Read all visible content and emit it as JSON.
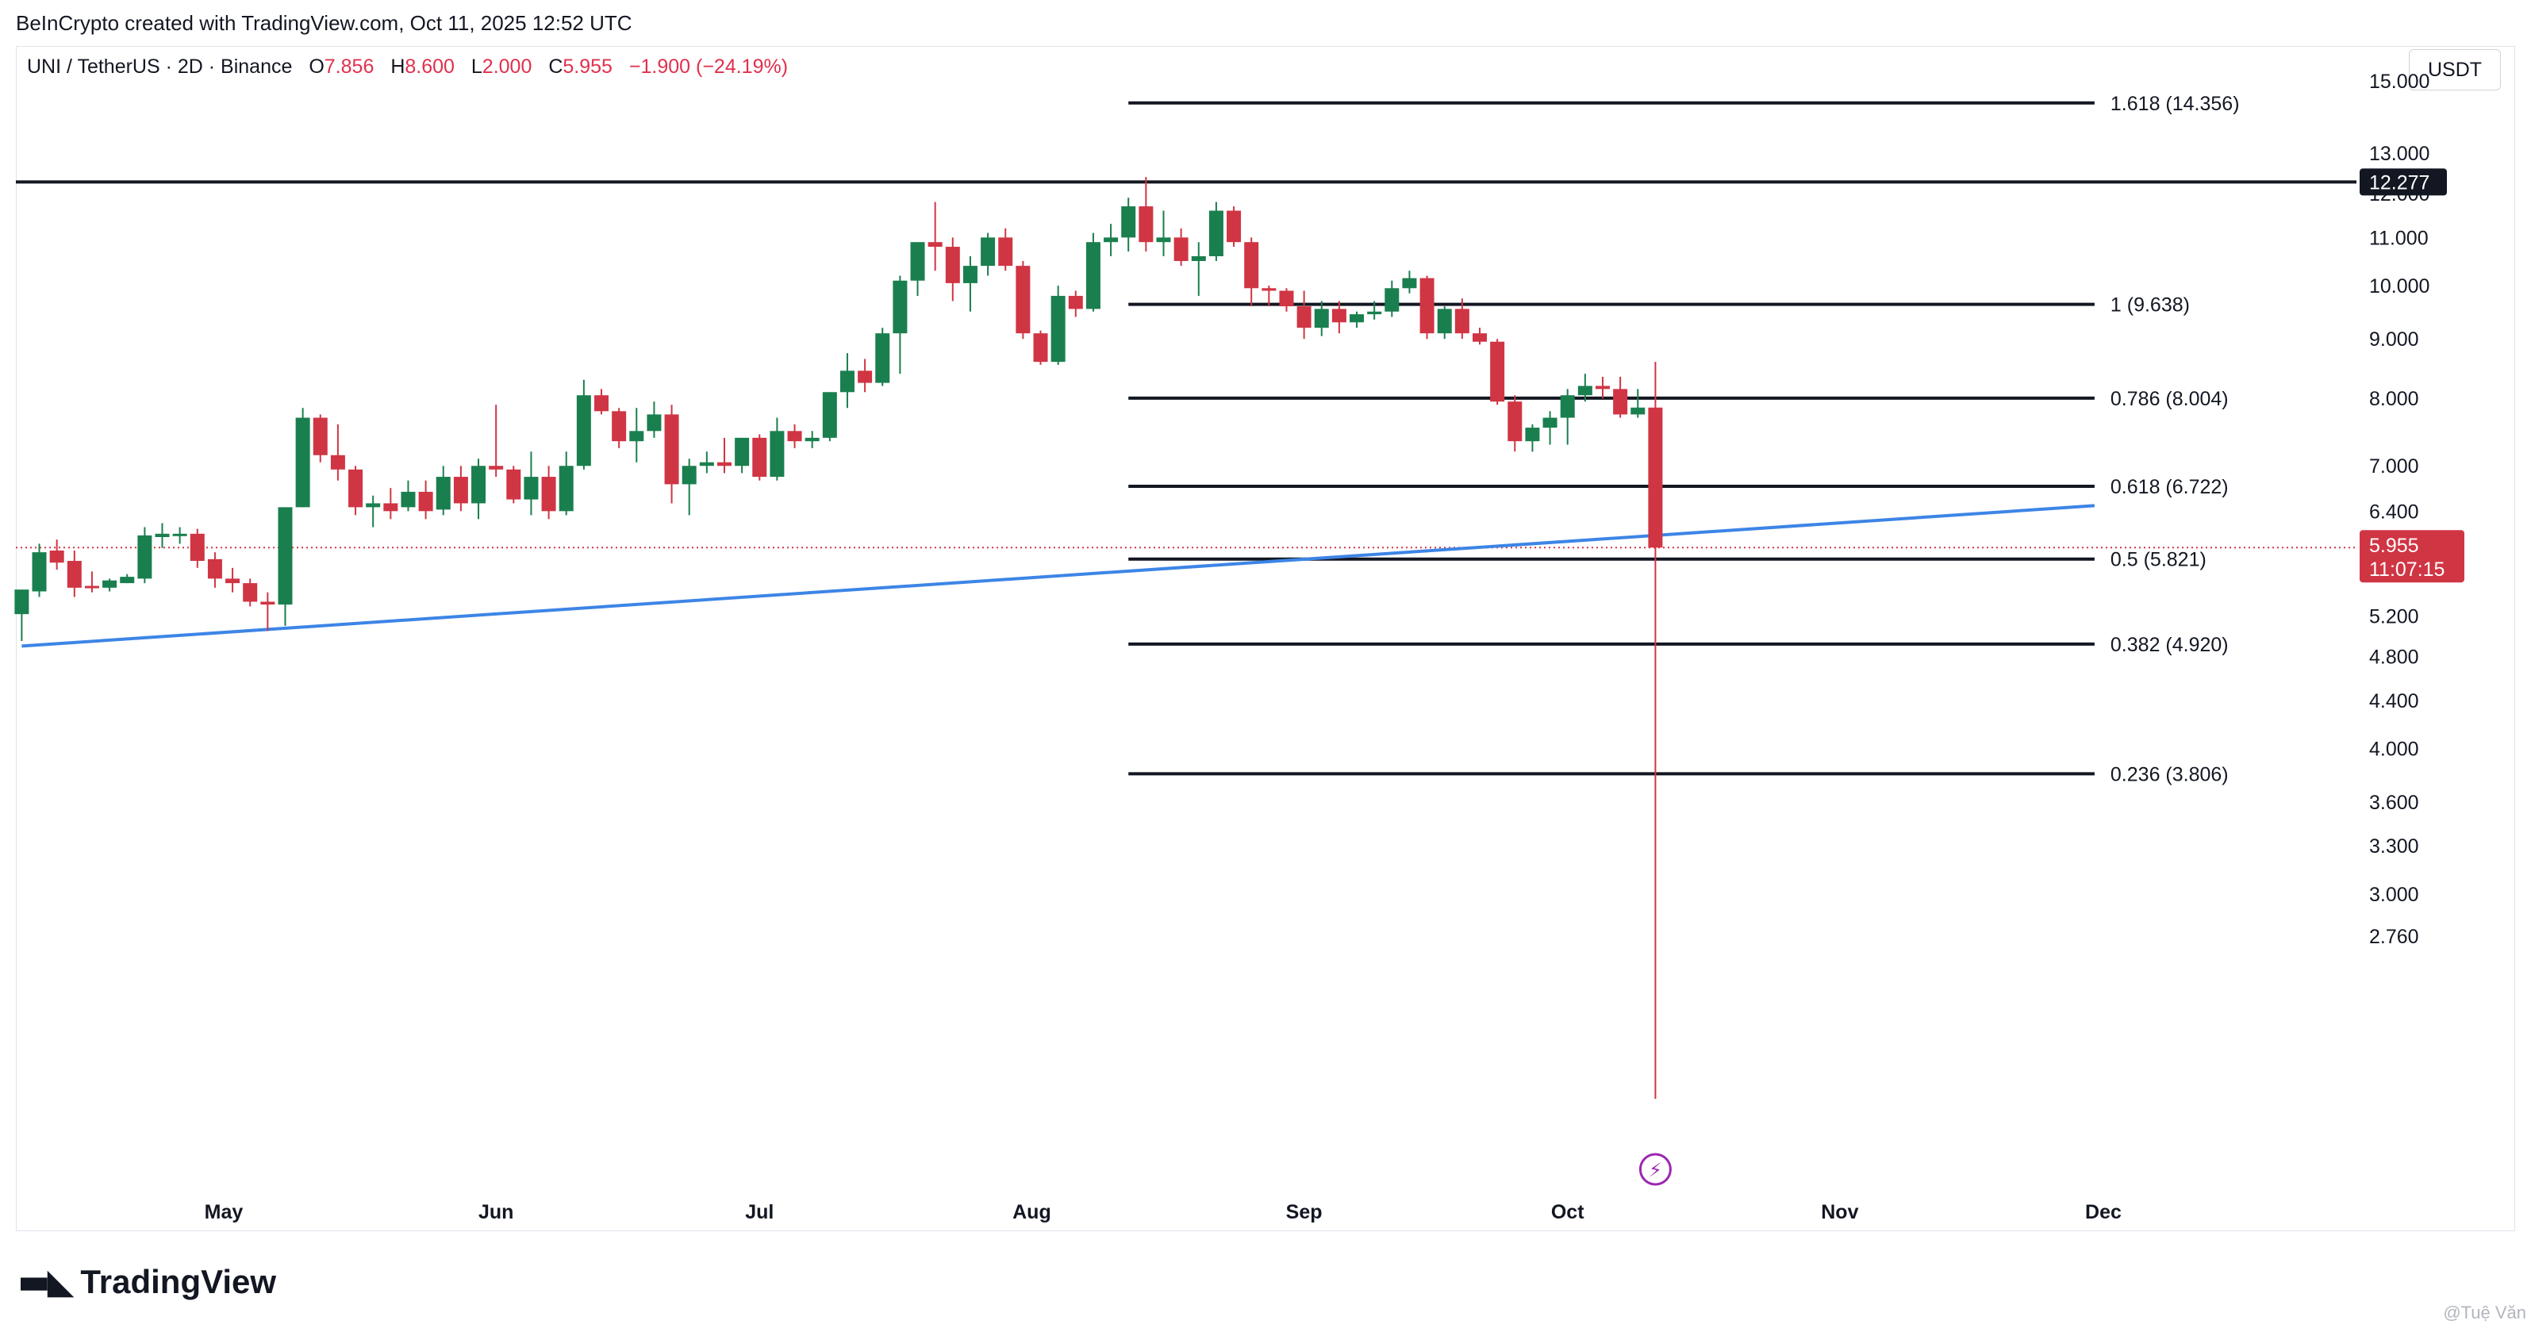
{
  "header": {
    "credit": "BeInCrypto created with TradingView.com, Oct 11, 2025 12:52 UTC"
  },
  "legend": {
    "symbol": "UNI / TetherUS · 2D · Binance",
    "open_label": "O",
    "open": "7.856",
    "high_label": "H",
    "high": "8.600",
    "low_label": "L",
    "low": "2.000",
    "close_label": "C",
    "close": "5.955",
    "change": "−1.900 (−24.19%)"
  },
  "unit": "USDT",
  "logo": {
    "text": "TradingView"
  },
  "watermark": "@Tuệ Văn",
  "colors": {
    "up": "#1a7f4e",
    "down": "#d03544",
    "trendline": "#3d85e6",
    "fib": "#131722",
    "price_badge": "#d03544",
    "resistance_badge": "#131722"
  },
  "chart_data": {
    "type": "candlestick",
    "scale": "log",
    "timeframe": "2D",
    "y_ticks": [
      "15.000",
      "13.000",
      "12.000",
      "11.000",
      "10.000",
      "9.000",
      "8.000",
      "7.000",
      "6.400",
      "5.200",
      "4.800",
      "4.400",
      "4.000",
      "3.600",
      "3.300",
      "3.000",
      "2.760"
    ],
    "x_ticks": [
      {
        "label": "May",
        "date": "2025-05-01"
      },
      {
        "label": "Jun",
        "date": "2025-06-01"
      },
      {
        "label": "Jul",
        "date": "2025-07-01"
      },
      {
        "label": "Aug",
        "date": "2025-08-01"
      },
      {
        "label": "Sep",
        "date": "2025-09-01"
      },
      {
        "label": "Oct",
        "date": "2025-10-01"
      },
      {
        "label": "Nov",
        "date": "2025-11-01"
      },
      {
        "label": "Dec",
        "date": "2025-12-01"
      }
    ],
    "candles": [
      {
        "date": "2025-04-08",
        "o": 5.22,
        "h": 5.45,
        "l": 4.95,
        "c": 5.48
      },
      {
        "date": "2025-04-10",
        "o": 5.46,
        "h": 6.0,
        "l": 5.4,
        "c": 5.9
      },
      {
        "date": "2025-04-12",
        "o": 5.92,
        "h": 6.05,
        "l": 5.7,
        "c": 5.78
      },
      {
        "date": "2025-04-14",
        "o": 5.8,
        "h": 5.92,
        "l": 5.4,
        "c": 5.5
      },
      {
        "date": "2025-04-16",
        "o": 5.52,
        "h": 5.68,
        "l": 5.45,
        "c": 5.5
      },
      {
        "date": "2025-04-18",
        "o": 5.5,
        "h": 5.6,
        "l": 5.46,
        "c": 5.58
      },
      {
        "date": "2025-04-20",
        "o": 5.55,
        "h": 5.65,
        "l": 5.55,
        "c": 5.62
      },
      {
        "date": "2025-04-22",
        "o": 5.6,
        "h": 6.2,
        "l": 5.55,
        "c": 6.1
      },
      {
        "date": "2025-04-24",
        "o": 6.08,
        "h": 6.25,
        "l": 5.95,
        "c": 6.12
      },
      {
        "date": "2025-04-26",
        "o": 6.1,
        "h": 6.2,
        "l": 6.0,
        "c": 6.12
      },
      {
        "date": "2025-04-28",
        "o": 6.12,
        "h": 6.18,
        "l": 5.72,
        "c": 5.8
      },
      {
        "date": "2025-04-30",
        "o": 5.82,
        "h": 5.9,
        "l": 5.5,
        "c": 5.6
      },
      {
        "date": "2025-05-02",
        "o": 5.6,
        "h": 5.72,
        "l": 5.45,
        "c": 5.55
      },
      {
        "date": "2025-05-04",
        "o": 5.55,
        "h": 5.6,
        "l": 5.3,
        "c": 5.35
      },
      {
        "date": "2025-05-06",
        "o": 5.35,
        "h": 5.45,
        "l": 5.05,
        "c": 5.32
      },
      {
        "date": "2025-05-08",
        "o": 5.32,
        "h": 6.45,
        "l": 5.1,
        "c": 6.45
      },
      {
        "date": "2025-05-10",
        "o": 6.45,
        "h": 7.85,
        "l": 6.45,
        "c": 7.7
      },
      {
        "date": "2025-05-12",
        "o": 7.7,
        "h": 7.75,
        "l": 7.05,
        "c": 7.15
      },
      {
        "date": "2025-05-14",
        "o": 7.15,
        "h": 7.6,
        "l": 6.8,
        "c": 6.95
      },
      {
        "date": "2025-05-16",
        "o": 6.95,
        "h": 7.0,
        "l": 6.35,
        "c": 6.45
      },
      {
        "date": "2025-05-18",
        "o": 6.45,
        "h": 6.6,
        "l": 6.2,
        "c": 6.5
      },
      {
        "date": "2025-05-20",
        "o": 6.5,
        "h": 6.7,
        "l": 6.3,
        "c": 6.4
      },
      {
        "date": "2025-05-22",
        "o": 6.45,
        "h": 6.8,
        "l": 6.4,
        "c": 6.65
      },
      {
        "date": "2025-05-24",
        "o": 6.65,
        "h": 6.8,
        "l": 6.3,
        "c": 6.4
      },
      {
        "date": "2025-05-26",
        "o": 6.42,
        "h": 7.0,
        "l": 6.35,
        "c": 6.85
      },
      {
        "date": "2025-05-28",
        "o": 6.85,
        "h": 7.0,
        "l": 6.4,
        "c": 6.5
      },
      {
        "date": "2025-05-30",
        "o": 6.5,
        "h": 7.1,
        "l": 6.3,
        "c": 7.0
      },
      {
        "date": "2025-06-01",
        "o": 7.0,
        "h": 7.9,
        "l": 6.85,
        "c": 6.95
      },
      {
        "date": "2025-06-03",
        "o": 6.95,
        "h": 7.0,
        "l": 6.5,
        "c": 6.55
      },
      {
        "date": "2025-06-05",
        "o": 6.55,
        "h": 7.2,
        "l": 6.35,
        "c": 6.85
      },
      {
        "date": "2025-06-07",
        "o": 6.85,
        "h": 7.0,
        "l": 6.3,
        "c": 6.4
      },
      {
        "date": "2025-06-09",
        "o": 6.4,
        "h": 7.2,
        "l": 6.35,
        "c": 7.0
      },
      {
        "date": "2025-06-11",
        "o": 7.0,
        "h": 8.3,
        "l": 6.95,
        "c": 8.05
      },
      {
        "date": "2025-06-13",
        "o": 8.05,
        "h": 8.15,
        "l": 7.75,
        "c": 7.8
      },
      {
        "date": "2025-06-15",
        "o": 7.8,
        "h": 7.85,
        "l": 7.25,
        "c": 7.35
      },
      {
        "date": "2025-06-17",
        "o": 7.35,
        "h": 7.85,
        "l": 7.05,
        "c": 7.5
      },
      {
        "date": "2025-06-19",
        "o": 7.5,
        "h": 7.95,
        "l": 7.4,
        "c": 7.75
      },
      {
        "date": "2025-06-21",
        "o": 7.75,
        "h": 7.9,
        "l": 6.5,
        "c": 6.75
      },
      {
        "date": "2025-06-23",
        "o": 6.75,
        "h": 7.1,
        "l": 6.35,
        "c": 7.0
      },
      {
        "date": "2025-06-25",
        "o": 7.0,
        "h": 7.2,
        "l": 6.9,
        "c": 7.05
      },
      {
        "date": "2025-06-27",
        "o": 7.05,
        "h": 7.4,
        "l": 6.9,
        "c": 7.0
      },
      {
        "date": "2025-06-29",
        "o": 7.0,
        "h": 7.4,
        "l": 6.9,
        "c": 7.4
      },
      {
        "date": "2025-07-01",
        "o": 7.4,
        "h": 7.45,
        "l": 6.8,
        "c": 6.85
      },
      {
        "date": "2025-07-03",
        "o": 6.85,
        "h": 7.7,
        "l": 6.8,
        "c": 7.5
      },
      {
        "date": "2025-07-05",
        "o": 7.5,
        "h": 7.6,
        "l": 7.25,
        "c": 7.35
      },
      {
        "date": "2025-07-07",
        "o": 7.35,
        "h": 7.5,
        "l": 7.25,
        "c": 7.4
      },
      {
        "date": "2025-07-09",
        "o": 7.4,
        "h": 8.1,
        "l": 7.35,
        "c": 8.1
      },
      {
        "date": "2025-07-11",
        "o": 8.1,
        "h": 8.75,
        "l": 7.85,
        "c": 8.45
      },
      {
        "date": "2025-07-13",
        "o": 8.45,
        "h": 8.65,
        "l": 8.1,
        "c": 8.25
      },
      {
        "date": "2025-07-15",
        "o": 8.25,
        "h": 9.2,
        "l": 8.2,
        "c": 9.1
      },
      {
        "date": "2025-07-17",
        "o": 9.1,
        "h": 10.2,
        "l": 8.4,
        "c": 10.1
      },
      {
        "date": "2025-07-19",
        "o": 10.1,
        "h": 10.9,
        "l": 9.8,
        "c": 10.9
      },
      {
        "date": "2025-07-21",
        "o": 10.9,
        "h": 11.8,
        "l": 10.3,
        "c": 10.8
      },
      {
        "date": "2025-07-23",
        "o": 10.8,
        "h": 11.0,
        "l": 9.7,
        "c": 10.05
      },
      {
        "date": "2025-07-25",
        "o": 10.05,
        "h": 10.6,
        "l": 9.5,
        "c": 10.4
      },
      {
        "date": "2025-07-27",
        "o": 10.4,
        "h": 11.1,
        "l": 10.2,
        "c": 11.0
      },
      {
        "date": "2025-07-29",
        "o": 11.0,
        "h": 11.2,
        "l": 10.3,
        "c": 10.4
      },
      {
        "date": "2025-07-31",
        "o": 10.4,
        "h": 10.5,
        "l": 9.0,
        "c": 9.1
      },
      {
        "date": "2025-08-02",
        "o": 9.1,
        "h": 9.15,
        "l": 8.55,
        "c": 8.6
      },
      {
        "date": "2025-08-04",
        "o": 8.6,
        "h": 10.0,
        "l": 8.55,
        "c": 9.8
      },
      {
        "date": "2025-08-06",
        "o": 9.8,
        "h": 9.9,
        "l": 9.4,
        "c": 9.55
      },
      {
        "date": "2025-08-08",
        "o": 9.55,
        "h": 11.1,
        "l": 9.5,
        "c": 10.9
      },
      {
        "date": "2025-08-10",
        "o": 10.9,
        "h": 11.3,
        "l": 10.6,
        "c": 11.0
      },
      {
        "date": "2025-08-12",
        "o": 11.0,
        "h": 11.9,
        "l": 10.7,
        "c": 11.7
      },
      {
        "date": "2025-08-14",
        "o": 11.7,
        "h": 12.4,
        "l": 10.7,
        "c": 10.9
      },
      {
        "date": "2025-08-16",
        "o": 10.9,
        "h": 11.6,
        "l": 10.6,
        "c": 11.0
      },
      {
        "date": "2025-08-18",
        "o": 11.0,
        "h": 11.2,
        "l": 10.4,
        "c": 10.5
      },
      {
        "date": "2025-08-20",
        "o": 10.5,
        "h": 10.9,
        "l": 9.8,
        "c": 10.6
      },
      {
        "date": "2025-08-22",
        "o": 10.6,
        "h": 11.8,
        "l": 10.5,
        "c": 11.6
      },
      {
        "date": "2025-08-24",
        "o": 11.6,
        "h": 11.7,
        "l": 10.8,
        "c": 10.9
      },
      {
        "date": "2025-08-26",
        "o": 10.9,
        "h": 11.0,
        "l": 9.6,
        "c": 9.95
      },
      {
        "date": "2025-08-28",
        "o": 9.95,
        "h": 10.0,
        "l": 9.6,
        "c": 9.9
      },
      {
        "date": "2025-08-30",
        "o": 9.9,
        "h": 9.95,
        "l": 9.5,
        "c": 9.6
      },
      {
        "date": "2025-09-01",
        "o": 9.6,
        "h": 9.9,
        "l": 9.0,
        "c": 9.2
      },
      {
        "date": "2025-09-03",
        "o": 9.2,
        "h": 9.7,
        "l": 9.05,
        "c": 9.55
      },
      {
        "date": "2025-09-05",
        "o": 9.55,
        "h": 9.7,
        "l": 9.1,
        "c": 9.3
      },
      {
        "date": "2025-09-07",
        "o": 9.3,
        "h": 9.5,
        "l": 9.2,
        "c": 9.45
      },
      {
        "date": "2025-09-09",
        "o": 9.45,
        "h": 9.7,
        "l": 9.35,
        "c": 9.5
      },
      {
        "date": "2025-09-11",
        "o": 9.5,
        "h": 10.1,
        "l": 9.4,
        "c": 9.95
      },
      {
        "date": "2025-09-13",
        "o": 9.95,
        "h": 10.3,
        "l": 9.85,
        "c": 10.15
      },
      {
        "date": "2025-09-15",
        "o": 10.15,
        "h": 10.2,
        "l": 9.0,
        "c": 9.1
      },
      {
        "date": "2025-09-17",
        "o": 9.1,
        "h": 9.6,
        "l": 9.0,
        "c": 9.55
      },
      {
        "date": "2025-09-19",
        "o": 9.55,
        "h": 9.75,
        "l": 9.0,
        "c": 9.1
      },
      {
        "date": "2025-09-21",
        "o": 9.1,
        "h": 9.2,
        "l": 8.9,
        "c": 8.95
      },
      {
        "date": "2025-09-23",
        "o": 8.95,
        "h": 9.0,
        "l": 7.9,
        "c": 7.95
      },
      {
        "date": "2025-09-25",
        "o": 7.95,
        "h": 8.05,
        "l": 7.2,
        "c": 7.35
      },
      {
        "date": "2025-09-27",
        "o": 7.35,
        "h": 7.6,
        "l": 7.2,
        "c": 7.55
      },
      {
        "date": "2025-09-29",
        "o": 7.55,
        "h": 7.8,
        "l": 7.3,
        "c": 7.7
      },
      {
        "date": "2025-10-01",
        "o": 7.7,
        "h": 8.15,
        "l": 7.3,
        "c": 8.05
      },
      {
        "date": "2025-10-03",
        "o": 8.05,
        "h": 8.4,
        "l": 7.95,
        "c": 8.2
      },
      {
        "date": "2025-10-05",
        "o": 8.2,
        "h": 8.35,
        "l": 8.0,
        "c": 8.15
      },
      {
        "date": "2025-10-07",
        "o": 8.15,
        "h": 8.35,
        "l": 7.7,
        "c": 7.75
      },
      {
        "date": "2025-10-09",
        "o": 7.75,
        "h": 8.15,
        "l": 7.7,
        "c": 7.856
      },
      {
        "date": "2025-10-11",
        "o": 7.856,
        "h": 8.6,
        "l": 2.0,
        "c": 5.955
      }
    ],
    "fib_levels": [
      {
        "label": "1.618 (14.356)",
        "value": 14.356
      },
      {
        "label": "1 (9.638)",
        "value": 9.638
      },
      {
        "label": "0.786 (8.004)",
        "value": 8.004
      },
      {
        "label": "0.618 (6.722)",
        "value": 6.722
      },
      {
        "label": "0.5 (5.821)",
        "value": 5.821
      },
      {
        "label": "0.382 (4.920)",
        "value": 4.92
      },
      {
        "label": "0.236 (3.806)",
        "value": 3.806
      }
    ],
    "fib_start": "2025-08-12",
    "fib_end": "2025-11-30",
    "resistance": {
      "value": 12.277,
      "label": "12.277"
    },
    "trendline": {
      "start": {
        "date": "2025-04-08",
        "value": 4.9
      },
      "end": {
        "date": "2025-11-30",
        "value": 6.47
      }
    },
    "last_price": {
      "value": 5.955,
      "label": "5.955",
      "countdown": "11:07:15"
    },
    "event_marker": {
      "date": "2025-10-11",
      "symbol": "⚡"
    }
  }
}
